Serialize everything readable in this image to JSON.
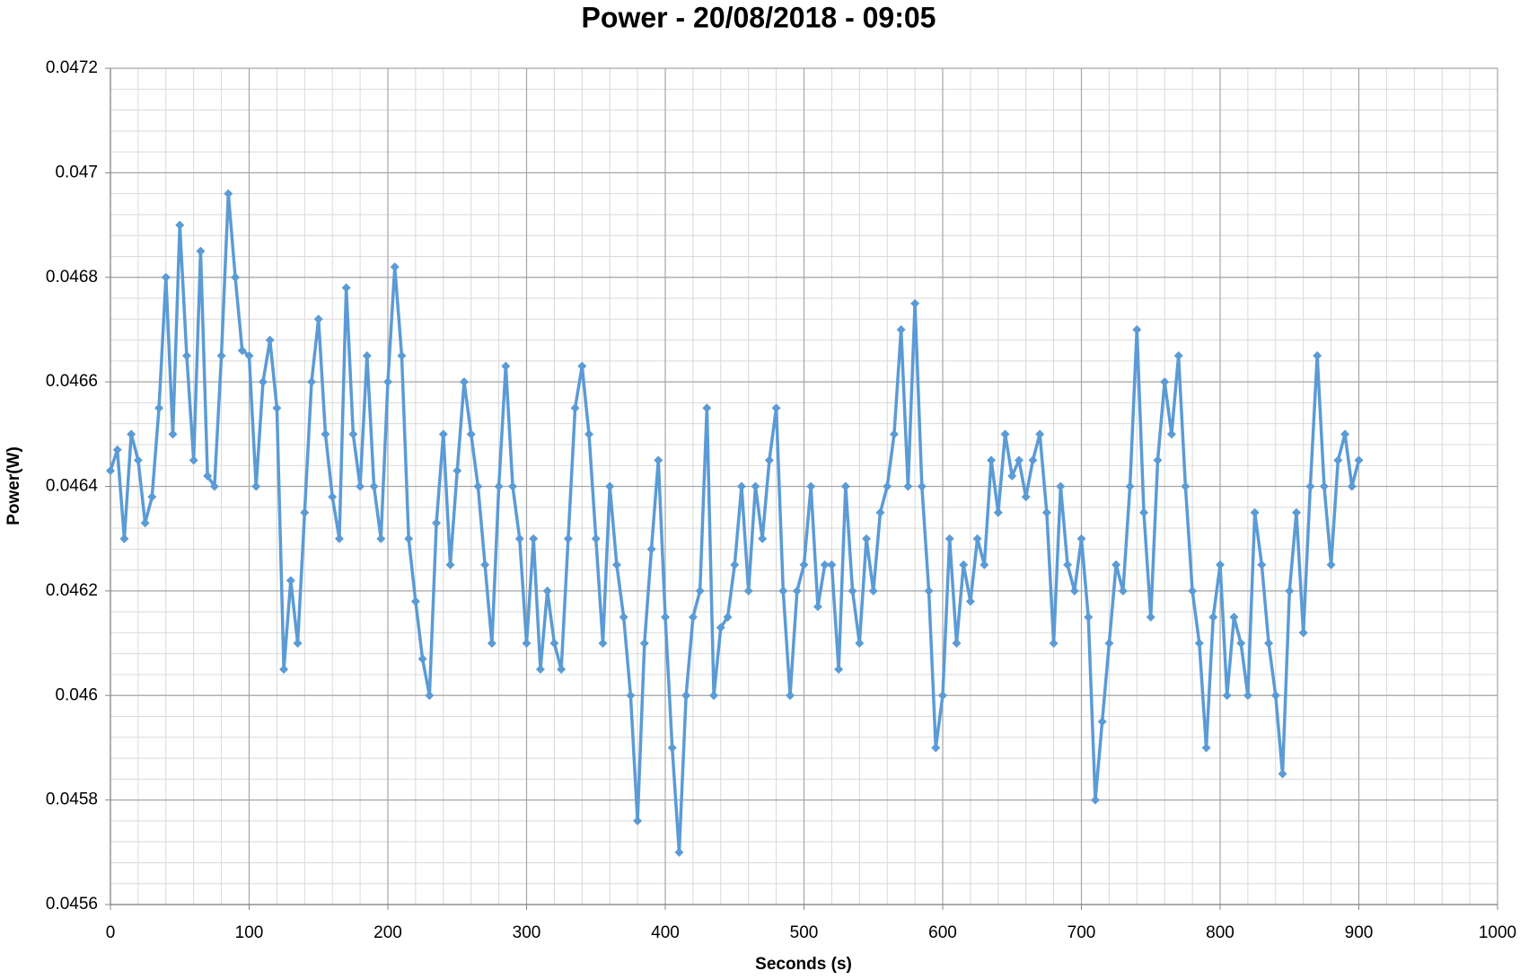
{
  "chart_data": {
    "type": "line",
    "title": "Power - 20/08/2018 - 09:05",
    "x_label": "Seconds (s)",
    "y_label": "Power(W)",
    "xlim": [
      0,
      1000
    ],
    "xticks": [
      0,
      100,
      200,
      300,
      400,
      500,
      600,
      700,
      800,
      900,
      1000
    ],
    "ylim": [
      0.0456,
      0.0472
    ],
    "yticks": [
      0.0456,
      0.0458,
      0.046,
      0.0462,
      0.0464,
      0.0466,
      0.0468,
      0.047,
      0.0472
    ],
    "grid": true,
    "x_minor_step": 20,
    "y_minor_step": 4e-05,
    "marker": "diamond",
    "x": [
      0,
      5,
      10,
      15,
      20,
      25,
      30,
      35,
      40,
      45,
      50,
      55,
      60,
      65,
      70,
      75,
      80,
      85,
      90,
      95,
      100,
      105,
      110,
      115,
      120,
      125,
      130,
      135,
      140,
      145,
      150,
      155,
      160,
      165,
      170,
      175,
      180,
      185,
      190,
      195,
      200,
      205,
      210,
      215,
      220,
      225,
      230,
      235,
      240,
      245,
      250,
      255,
      260,
      265,
      270,
      275,
      280,
      285,
      290,
      295,
      300,
      305,
      310,
      315,
      320,
      325,
      330,
      335,
      340,
      345,
      350,
      355,
      360,
      365,
      370,
      375,
      380,
      385,
      390,
      395,
      400,
      405,
      410,
      415,
      420,
      425,
      430,
      435,
      440,
      445,
      450,
      455,
      460,
      465,
      470,
      475,
      480,
      485,
      490,
      495,
      500,
      505,
      510,
      515,
      520,
      525,
      530,
      535,
      540,
      545,
      550,
      555,
      560,
      565,
      570,
      575,
      580,
      585,
      590,
      595,
      600,
      605,
      610,
      615,
      620,
      625,
      630,
      635,
      640,
      645,
      650,
      655,
      660,
      665,
      670,
      675,
      680,
      685,
      690,
      695,
      700,
      705,
      710,
      715,
      720,
      725,
      730,
      735,
      740,
      745,
      750,
      755,
      760,
      765,
      770,
      775,
      780,
      785,
      790,
      795,
      800,
      805,
      810,
      815,
      820,
      825,
      830,
      835,
      840,
      845,
      850,
      855,
      860,
      865,
      870,
      875,
      880,
      885,
      890,
      895,
      900
    ],
    "series": [
      {
        "name": "Power",
        "color": "#5b9bd5",
        "values": [
          0.04643,
          0.04647,
          0.0463,
          0.0465,
          0.04645,
          0.04633,
          0.04638,
          0.04655,
          0.0468,
          0.0465,
          0.0469,
          0.04665,
          0.04645,
          0.04685,
          0.04642,
          0.0464,
          0.04665,
          0.04696,
          0.0468,
          0.04666,
          0.04665,
          0.0464,
          0.0466,
          0.04668,
          0.04655,
          0.04605,
          0.04622,
          0.0461,
          0.04635,
          0.0466,
          0.04672,
          0.0465,
          0.04638,
          0.0463,
          0.04678,
          0.0465,
          0.0464,
          0.04665,
          0.0464,
          0.0463,
          0.0466,
          0.04682,
          0.04665,
          0.0463,
          0.04618,
          0.04607,
          0.046,
          0.04633,
          0.0465,
          0.04625,
          0.04643,
          0.0466,
          0.0465,
          0.0464,
          0.04625,
          0.0461,
          0.0464,
          0.04663,
          0.0464,
          0.0463,
          0.0461,
          0.0463,
          0.04605,
          0.0462,
          0.0461,
          0.04605,
          0.0463,
          0.04655,
          0.04663,
          0.0465,
          0.0463,
          0.0461,
          0.0464,
          0.04625,
          0.04615,
          0.046,
          0.04576,
          0.0461,
          0.04628,
          0.04645,
          0.04615,
          0.0459,
          0.0457,
          0.046,
          0.04615,
          0.0462,
          0.04655,
          0.046,
          0.04613,
          0.04615,
          0.04625,
          0.0464,
          0.0462,
          0.0464,
          0.0463,
          0.04645,
          0.04655,
          0.0462,
          0.046,
          0.0462,
          0.04625,
          0.0464,
          0.04617,
          0.04625,
          0.04625,
          0.04605,
          0.0464,
          0.0462,
          0.0461,
          0.0463,
          0.0462,
          0.04635,
          0.0464,
          0.0465,
          0.0467,
          0.0464,
          0.04675,
          0.0464,
          0.0462,
          0.0459,
          0.046,
          0.0463,
          0.0461,
          0.04625,
          0.04618,
          0.0463,
          0.04625,
          0.04645,
          0.04635,
          0.0465,
          0.04642,
          0.04645,
          0.04638,
          0.04645,
          0.0465,
          0.04635,
          0.0461,
          0.0464,
          0.04625,
          0.0462,
          0.0463,
          0.04615,
          0.0458,
          0.04595,
          0.0461,
          0.04625,
          0.0462,
          0.0464,
          0.0467,
          0.04635,
          0.04615,
          0.04645,
          0.0466,
          0.0465,
          0.04665,
          0.0464,
          0.0462,
          0.0461,
          0.0459,
          0.04615,
          0.04625,
          0.046,
          0.04615,
          0.0461,
          0.046,
          0.04635,
          0.04625,
          0.0461,
          0.046,
          0.04585,
          0.0462,
          0.04635,
          0.04612,
          0.0464,
          0.04665,
          0.0464,
          0.04625,
          0.04645,
          0.0465,
          0.0464,
          0.04645
        ]
      }
    ]
  }
}
